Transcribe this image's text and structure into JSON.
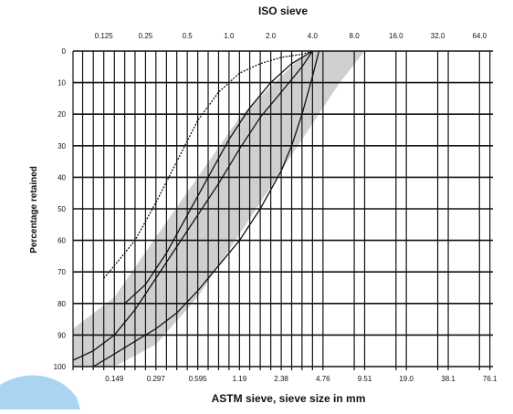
{
  "chart_data": {
    "type": "line",
    "title": "ISO sieve",
    "xlabel": "ASTM sieve, sieve size in mm",
    "ylabel": "Percentage retained",
    "x_scale": "log",
    "xlim": [
      0.075,
      80
    ],
    "ylim": [
      0,
      100
    ],
    "y_inverted": true,
    "y_ticks": [
      "0",
      "10",
      "20",
      "30",
      "40",
      "50",
      "60",
      "70",
      "80",
      "90",
      "100"
    ],
    "top_ticks": [
      {
        "v": 0.125,
        "label": "0.125"
      },
      {
        "v": 0.25,
        "label": "0.25"
      },
      {
        "v": 0.5,
        "label": "0.5"
      },
      {
        "v": 1.0,
        "label": "1.0"
      },
      {
        "v": 2.0,
        "label": "2.0"
      },
      {
        "v": 4.0,
        "label": "4.0"
      },
      {
        "v": 8.0,
        "label": "8.0"
      },
      {
        "v": 16.0,
        "label": "16.0"
      },
      {
        "v": 32.0,
        "label": "32.0"
      },
      {
        "v": 64.0,
        "label": "64.0"
      }
    ],
    "bottom_ticks": [
      {
        "v": 0.149,
        "label": "0.149"
      },
      {
        "v": 0.297,
        "label": "0.297"
      },
      {
        "v": 0.595,
        "label": "0.595"
      },
      {
        "v": 1.19,
        "label": "1.19"
      },
      {
        "v": 2.38,
        "label": "2.38"
      },
      {
        "v": 4.76,
        "label": "4.76"
      },
      {
        "v": 9.51,
        "label": "9.51"
      },
      {
        "v": 19.0,
        "label": "19.0"
      },
      {
        "v": 38.1,
        "label": "38.1"
      },
      {
        "v": 76.1,
        "label": "76.1"
      }
    ],
    "vertical_gridlines": [
      0.075,
      0.088,
      0.105,
      0.125,
      0.149,
      0.177,
      0.21,
      0.25,
      0.297,
      0.354,
      0.42,
      0.5,
      0.595,
      0.707,
      0.841,
      1.0,
      1.19,
      1.41,
      1.68,
      2.0,
      2.38,
      2.83,
      3.36,
      4.0,
      4.76,
      8.0,
      9.51,
      16.0,
      19.0,
      32.0,
      38.1,
      64.0,
      76.1
    ],
    "shaded_band": {
      "upper": [
        {
          "x": 0.075,
          "y": 88
        },
        {
          "x": 0.149,
          "y": 78
        },
        {
          "x": 0.297,
          "y": 59
        },
        {
          "x": 0.595,
          "y": 40
        },
        {
          "x": 1.19,
          "y": 21
        },
        {
          "x": 2.38,
          "y": 8
        },
        {
          "x": 3.3,
          "y": 2
        },
        {
          "x": 4.0,
          "y": 0
        },
        {
          "x": 9.51,
          "y": 0
        }
      ],
      "lower": [
        {
          "x": 9.51,
          "y": 0
        },
        {
          "x": 6.3,
          "y": 10
        },
        {
          "x": 4.76,
          "y": 18
        },
        {
          "x": 2.38,
          "y": 38
        },
        {
          "x": 1.19,
          "y": 58
        },
        {
          "x": 0.595,
          "y": 78
        },
        {
          "x": 0.297,
          "y": 93
        },
        {
          "x": 0.149,
          "y": 100
        },
        {
          "x": 0.075,
          "y": 100
        }
      ]
    },
    "series": [
      {
        "style": "dotted",
        "points": [
          {
            "x": 0.125,
            "y": 72
          },
          {
            "x": 0.149,
            "y": 68
          },
          {
            "x": 0.21,
            "y": 60
          },
          {
            "x": 0.297,
            "y": 48
          },
          {
            "x": 0.42,
            "y": 35
          },
          {
            "x": 0.595,
            "y": 22
          },
          {
            "x": 0.841,
            "y": 13
          },
          {
            "x": 1.19,
            "y": 7
          },
          {
            "x": 1.68,
            "y": 4
          },
          {
            "x": 2.38,
            "y": 2
          },
          {
            "x": 3.36,
            "y": 1
          },
          {
            "x": 4.0,
            "y": 0
          }
        ]
      },
      {
        "style": "solid",
        "points": [
          {
            "x": 0.177,
            "y": 80
          },
          {
            "x": 0.25,
            "y": 74
          },
          {
            "x": 0.354,
            "y": 64
          },
          {
            "x": 0.5,
            "y": 52
          },
          {
            "x": 0.707,
            "y": 40
          },
          {
            "x": 1.0,
            "y": 28
          },
          {
            "x": 1.41,
            "y": 18
          },
          {
            "x": 2.0,
            "y": 10
          },
          {
            "x": 2.83,
            "y": 4
          },
          {
            "x": 3.36,
            "y": 2
          },
          {
            "x": 4.0,
            "y": 0
          }
        ]
      },
      {
        "style": "solid",
        "points": [
          {
            "x": 0.075,
            "y": 98
          },
          {
            "x": 0.105,
            "y": 95
          },
          {
            "x": 0.149,
            "y": 90
          },
          {
            "x": 0.21,
            "y": 82
          },
          {
            "x": 0.297,
            "y": 72
          },
          {
            "x": 0.42,
            "y": 62
          },
          {
            "x": 0.595,
            "y": 52
          },
          {
            "x": 0.841,
            "y": 42
          },
          {
            "x": 1.19,
            "y": 31
          },
          {
            "x": 1.68,
            "y": 21
          },
          {
            "x": 2.38,
            "y": 13
          },
          {
            "x": 3.36,
            "y": 5
          },
          {
            "x": 4.0,
            "y": 0
          }
        ]
      },
      {
        "style": "solid",
        "points": [
          {
            "x": 0.105,
            "y": 100
          },
          {
            "x": 0.149,
            "y": 96
          },
          {
            "x": 0.21,
            "y": 92
          },
          {
            "x": 0.297,
            "y": 88
          },
          {
            "x": 0.42,
            "y": 83
          },
          {
            "x": 0.595,
            "y": 76
          },
          {
            "x": 0.841,
            "y": 68
          },
          {
            "x": 1.19,
            "y": 60
          },
          {
            "x": 1.68,
            "y": 50
          },
          {
            "x": 2.38,
            "y": 38
          },
          {
            "x": 2.83,
            "y": 30
          },
          {
            "x": 3.36,
            "y": 20
          },
          {
            "x": 4.0,
            "y": 8
          },
          {
            "x": 4.45,
            "y": 0
          }
        ]
      }
    ]
  },
  "colors": {
    "band": "#cfcfcf",
    "line": "#111111",
    "corner_badge": "#a9d5f2"
  }
}
